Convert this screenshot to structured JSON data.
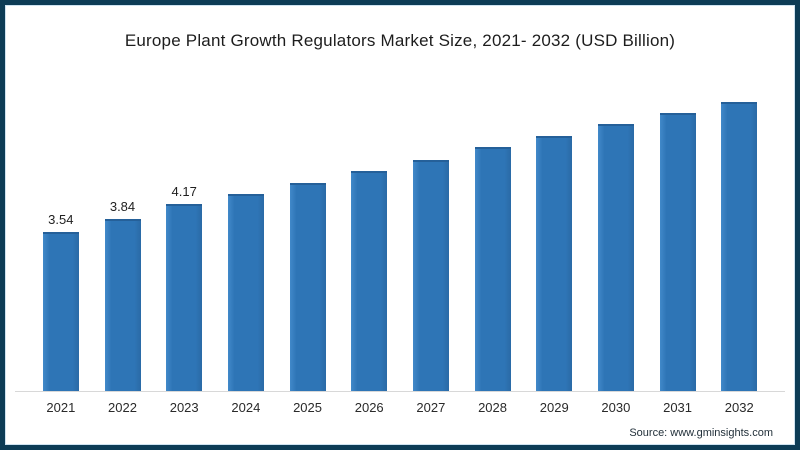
{
  "title": "Europe Plant Growth Regulators Market Size, 2021- 2032 (USD Billion)",
  "source": "Source: www.gminsights.com",
  "colors": {
    "bar": "#2e75b6",
    "frame_border": "#0d3c56",
    "axis_line": "#d8d8d8",
    "title_text": "#1d1d1d"
  },
  "chart_data": {
    "type": "bar",
    "title": "Europe Plant Growth Regulators Market Size, 2021- 2032 (USD Billion)",
    "categories": [
      "2021",
      "2022",
      "2023",
      "2024",
      "2025",
      "2026",
      "2027",
      "2028",
      "2029",
      "2030",
      "2031",
      "2032"
    ],
    "values": [
      3.54,
      3.84,
      4.17,
      4.4,
      4.65,
      4.9,
      5.15,
      5.45,
      5.7,
      5.95,
      6.2,
      6.45
    ],
    "data_labels": [
      "3.54",
      "3.84",
      "4.17",
      "",
      "",
      "",
      "",
      "",
      "",
      "",
      "",
      ""
    ],
    "xlabel": "",
    "ylabel": "",
    "ylim": [
      0,
      6.9
    ],
    "grid": false,
    "legend": null,
    "unit": "USD Billion"
  }
}
